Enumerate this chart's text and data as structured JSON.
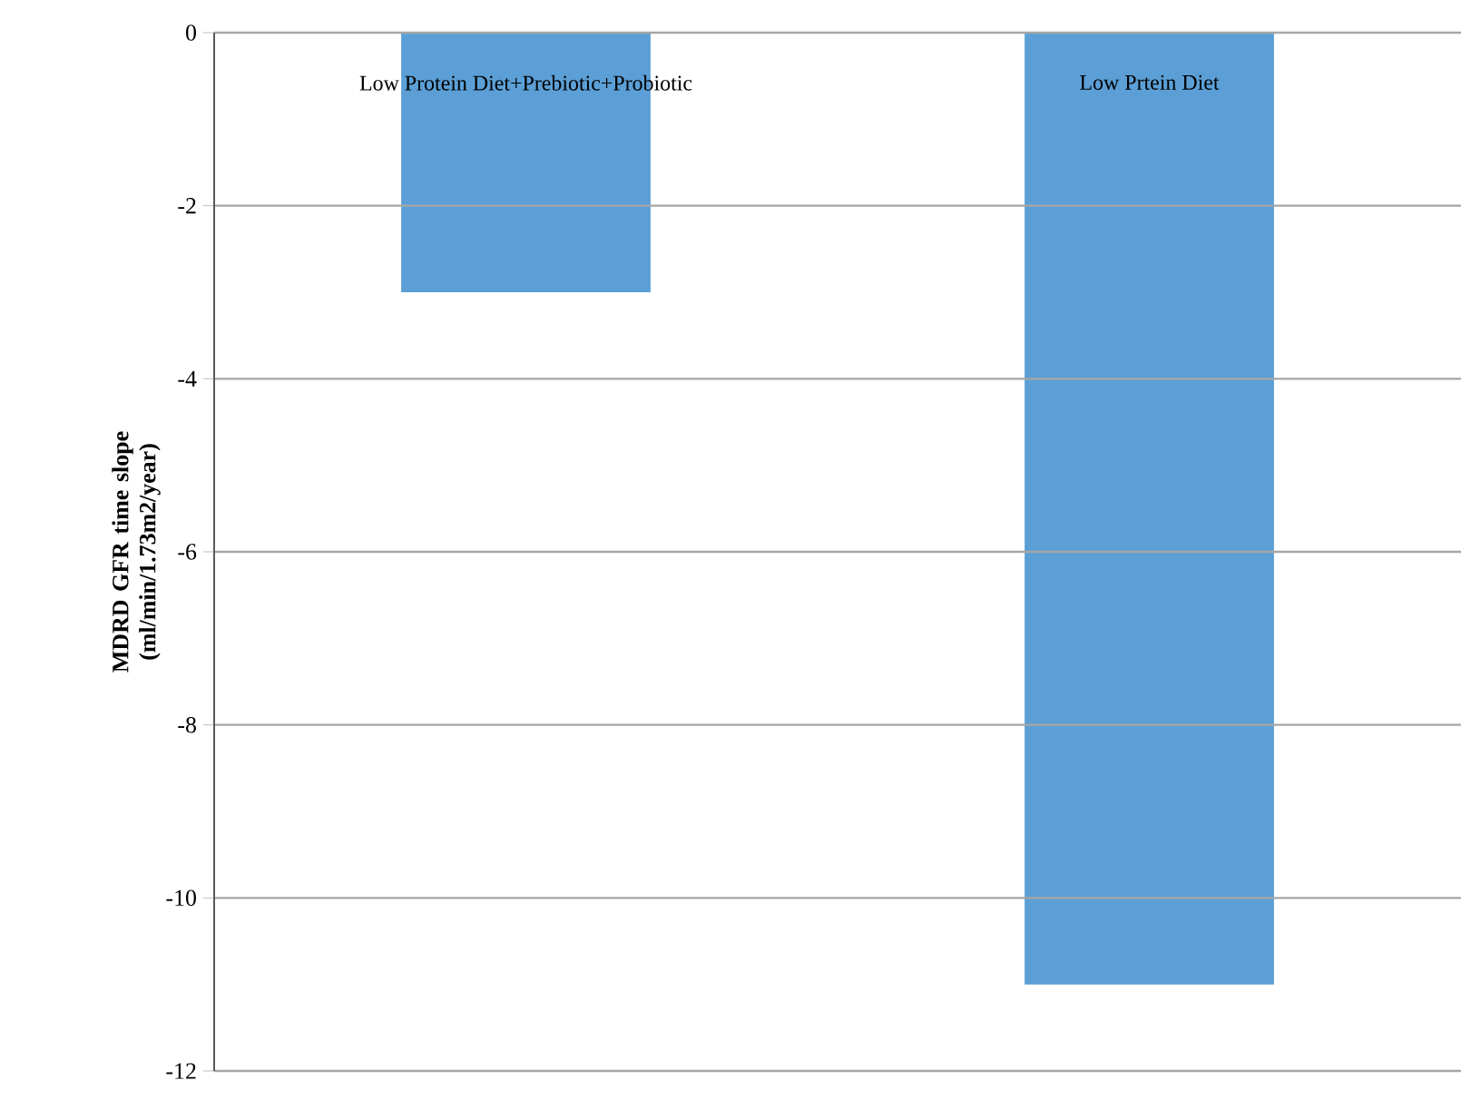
{
  "chart_data": {
    "type": "bar",
    "ylabel": "MDRD GFR time slope (ml/min/1.73m2/year)",
    "categories": [
      "Low Protein Diet+Prebiotic+Probiotic",
      "Low Prtein Diet"
    ],
    "values": [
      -3,
      -11
    ],
    "color": "#5b9fd6",
    "ylim": [
      -12,
      0
    ],
    "yticks": [
      -12,
      -10,
      -8,
      -6,
      -4,
      -2,
      0
    ],
    "grid": "y"
  }
}
